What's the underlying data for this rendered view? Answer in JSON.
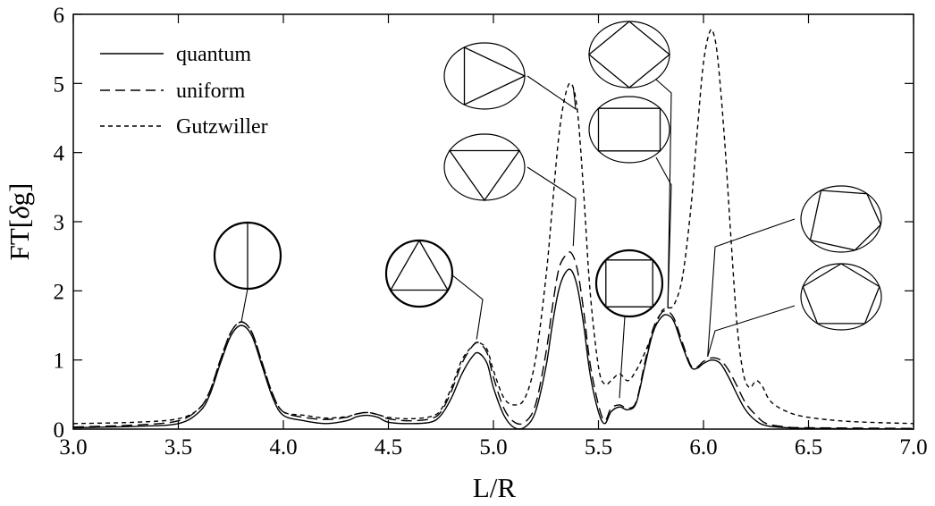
{
  "chart_data": {
    "type": "line",
    "title": "",
    "xlabel": "L/R",
    "ylabel_prefix": "FT[",
    "ylabel_symbol": "δ",
    "ylabel_suffix": "g]",
    "xlim": [
      3.0,
      7.0
    ],
    "ylim": [
      0,
      6
    ],
    "xticks": [
      "3.0",
      "3.5",
      "4.0",
      "4.5",
      "5.0",
      "5.5",
      "6.0",
      "6.5",
      "7.0"
    ],
    "yticks": [
      "0",
      "1",
      "2",
      "3",
      "4",
      "5",
      "6"
    ],
    "grid": false,
    "legend_position": "top-left",
    "series": [
      {
        "name": "quantum",
        "dash": "solid",
        "x": [
          3.0,
          3.3,
          3.5,
          3.6,
          3.65,
          3.7,
          3.75,
          3.8,
          3.85,
          3.9,
          3.95,
          4.0,
          4.1,
          4.2,
          4.3,
          4.35,
          4.4,
          4.45,
          4.5,
          4.6,
          4.7,
          4.75,
          4.8,
          4.85,
          4.9,
          4.93,
          4.97,
          5.0,
          5.05,
          5.1,
          5.15,
          5.2,
          5.25,
          5.28,
          5.31,
          5.34,
          5.37,
          5.4,
          5.43,
          5.46,
          5.5,
          5.53,
          5.56,
          5.6,
          5.64,
          5.68,
          5.72,
          5.76,
          5.8,
          5.83,
          5.86,
          5.9,
          5.94,
          5.97,
          6.0,
          6.04,
          6.08,
          6.12,
          6.16,
          6.2,
          6.25,
          6.3,
          6.4,
          6.5,
          7.0
        ],
        "y": [
          0.02,
          0.04,
          0.08,
          0.25,
          0.5,
          0.95,
          1.35,
          1.5,
          1.35,
          0.9,
          0.45,
          0.2,
          0.12,
          0.08,
          0.12,
          0.18,
          0.2,
          0.17,
          0.1,
          0.08,
          0.1,
          0.2,
          0.45,
          0.8,
          1.05,
          1.1,
          0.95,
          0.6,
          0.2,
          0.02,
          0.03,
          0.25,
          0.9,
          1.5,
          2.0,
          2.25,
          2.3,
          2.05,
          1.5,
          0.8,
          0.25,
          0.08,
          0.25,
          0.32,
          0.28,
          0.38,
          0.9,
          1.4,
          1.62,
          1.65,
          1.55,
          1.2,
          0.9,
          0.88,
          0.95,
          1.0,
          0.95,
          0.75,
          0.5,
          0.28,
          0.12,
          0.05,
          0.02,
          0.01,
          0.0
        ]
      },
      {
        "name": "uniform",
        "dash": "dashed",
        "x": [
          3.0,
          3.3,
          3.5,
          3.6,
          3.65,
          3.7,
          3.75,
          3.8,
          3.85,
          3.9,
          3.95,
          4.0,
          4.1,
          4.2,
          4.3,
          4.35,
          4.4,
          4.45,
          4.5,
          4.6,
          4.7,
          4.75,
          4.8,
          4.85,
          4.9,
          4.93,
          4.97,
          5.0,
          5.05,
          5.1,
          5.15,
          5.2,
          5.25,
          5.28,
          5.31,
          5.34,
          5.37,
          5.4,
          5.43,
          5.46,
          5.5,
          5.53,
          5.56,
          5.6,
          5.64,
          5.68,
          5.72,
          5.76,
          5.8,
          5.83,
          5.86,
          5.9,
          5.94,
          5.97,
          6.0,
          6.04,
          6.08,
          6.12,
          6.16,
          6.2,
          6.25,
          6.3,
          6.4,
          6.5,
          7.0
        ],
        "y": [
          0.03,
          0.06,
          0.12,
          0.3,
          0.55,
          1.0,
          1.4,
          1.55,
          1.4,
          0.95,
          0.5,
          0.25,
          0.17,
          0.14,
          0.17,
          0.22,
          0.24,
          0.21,
          0.15,
          0.12,
          0.15,
          0.25,
          0.55,
          0.95,
          1.2,
          1.25,
          1.1,
          0.75,
          0.3,
          0.1,
          0.1,
          0.35,
          1.1,
          1.75,
          2.3,
          2.5,
          2.55,
          2.3,
          1.7,
          0.95,
          0.35,
          0.12,
          0.3,
          0.35,
          0.3,
          0.4,
          0.95,
          1.45,
          1.68,
          1.7,
          1.6,
          1.25,
          0.92,
          0.9,
          0.98,
          1.03,
          1.0,
          0.85,
          0.62,
          0.38,
          0.2,
          0.08,
          0.03,
          0.02,
          0.01
        ]
      },
      {
        "name": "Gutzwiller",
        "dash": "dotted",
        "x": [
          3.0,
          3.3,
          3.5,
          3.6,
          3.65,
          3.7,
          3.75,
          3.8,
          3.85,
          3.9,
          3.95,
          4.0,
          4.1,
          4.2,
          4.3,
          4.35,
          4.4,
          4.45,
          4.5,
          4.6,
          4.7,
          4.75,
          4.8,
          4.85,
          4.9,
          4.93,
          4.97,
          5.0,
          5.05,
          5.1,
          5.15,
          5.2,
          5.25,
          5.28,
          5.31,
          5.34,
          5.37,
          5.4,
          5.43,
          5.46,
          5.5,
          5.53,
          5.56,
          5.6,
          5.64,
          5.68,
          5.72,
          5.76,
          5.8,
          5.83,
          5.86,
          5.9,
          5.94,
          5.97,
          6.0,
          6.03,
          6.05,
          6.07,
          6.1,
          6.13,
          6.16,
          6.19,
          6.22,
          6.25,
          6.28,
          6.32,
          6.4,
          6.5,
          6.7,
          7.0
        ],
        "y": [
          0.08,
          0.1,
          0.15,
          0.3,
          0.55,
          1.0,
          1.4,
          1.55,
          1.4,
          0.95,
          0.5,
          0.25,
          0.2,
          0.16,
          0.18,
          0.22,
          0.24,
          0.21,
          0.17,
          0.15,
          0.18,
          0.28,
          0.6,
          1.0,
          1.2,
          1.25,
          1.15,
          0.85,
          0.45,
          0.35,
          0.45,
          1.0,
          2.2,
          3.2,
          4.2,
          4.8,
          5.0,
          4.6,
          3.4,
          2.0,
          0.9,
          0.65,
          0.7,
          0.8,
          0.7,
          0.85,
          1.1,
          1.4,
          1.7,
          1.75,
          1.8,
          2.2,
          3.2,
          4.3,
          5.3,
          5.75,
          5.7,
          5.3,
          4.2,
          2.8,
          1.5,
          0.8,
          0.6,
          0.7,
          0.62,
          0.4,
          0.25,
          0.17,
          0.11,
          0.08
        ]
      }
    ]
  },
  "insets": {
    "stroke_color": "#000000",
    "items": [
      {
        "orbit": "diameter",
        "sides": 2,
        "label_x": 3.8,
        "label_y": 1.55,
        "shape": "circle"
      },
      {
        "orbit": "triangle",
        "sides": 3,
        "label_x": 4.92,
        "label_y": 1.3,
        "shape": "circle"
      },
      {
        "orbit": "square",
        "sides": 4,
        "label_x": 5.6,
        "label_y": 0.45,
        "shape": "circle"
      },
      {
        "orbit": "triangle-right",
        "sides": 3,
        "label_x": 5.38,
        "label_y": 4.95,
        "shape": "ellipse"
      },
      {
        "orbit": "triangle-down",
        "sides": 3,
        "label_x": 5.38,
        "label_y": 2.65,
        "shape": "ellipse"
      },
      {
        "orbit": "diamond",
        "sides": 4,
        "label_x": 5.83,
        "label_y": 1.75,
        "shape": "ellipse"
      },
      {
        "orbit": "rectangle",
        "sides": 4,
        "label_x": 5.83,
        "label_y": 1.75,
        "shape": "ellipse"
      },
      {
        "orbit": "pentagon-irregular",
        "sides": 5,
        "label_x": 6.02,
        "label_y": 1.05,
        "shape": "ellipse"
      },
      {
        "orbit": "pentagon",
        "sides": 5,
        "label_x": 6.02,
        "label_y": 1.05,
        "shape": "ellipse"
      }
    ]
  }
}
